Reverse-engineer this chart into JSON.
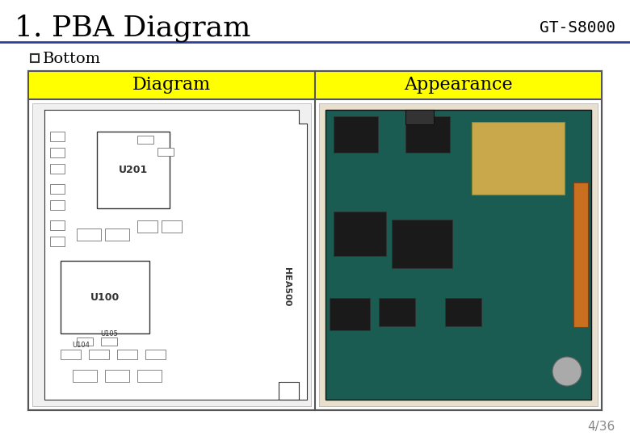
{
  "title": "1. PBA Diagram",
  "model": "GT-S8000",
  "subtitle": "Bottom",
  "col1_header": "Diagram",
  "col2_header": "Appearance",
  "page": "4/36",
  "bg_color": "#ffffff",
  "header_line_color": "#2e4099",
  "table_border_color": "#555555",
  "header_bg_color": "#ffff00",
  "header_text_color": "#000000",
  "title_color": "#000000",
  "model_color": "#000000",
  "subtitle_color": "#000000",
  "page_color": "#888888",
  "title_fontsize": 26,
  "model_fontsize": 14,
  "subtitle_fontsize": 14,
  "header_fontsize": 16,
  "page_fontsize": 11
}
